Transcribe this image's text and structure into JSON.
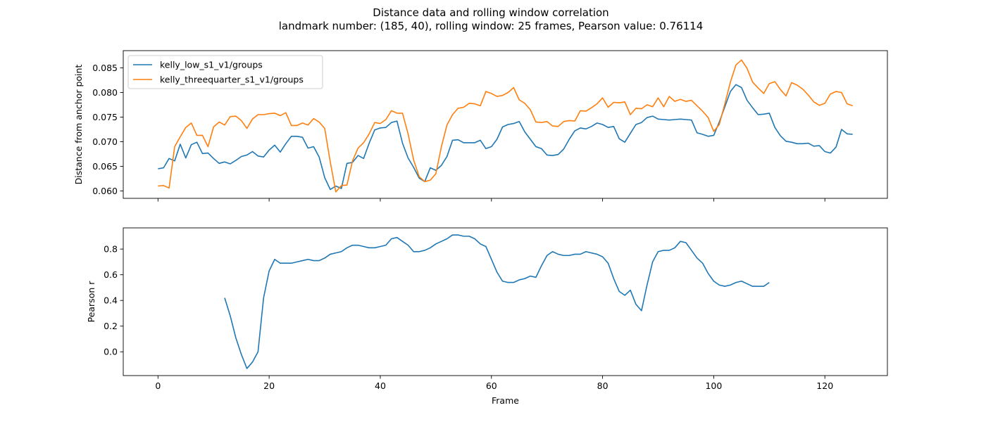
{
  "title_lines": [
    "Distance data and rolling window correlation",
    "landmark number: (185, 40), rolling window: 25 frames, Pearson value: 0.76114"
  ],
  "colors": {
    "series_1": "#1f77b4",
    "series_2": "#ff7f0e",
    "frame": "#000000"
  },
  "chart_data": [
    {
      "type": "line",
      "ylabel": "Distance from anchor point",
      "xlim": [
        -6.25,
        131.25
      ],
      "ylim": [
        0.0585,
        0.0885
      ],
      "xticks": [
        0,
        20,
        40,
        60,
        80,
        100,
        120
      ],
      "show_x_tick_labels": false,
      "yticks": [
        0.06,
        0.065,
        0.07,
        0.075,
        0.08,
        0.085
      ],
      "ytick_labels": [
        "0.060",
        "0.065",
        "0.070",
        "0.075",
        "0.080",
        "0.085"
      ],
      "grid": false,
      "legend_position": "upper-left",
      "series": [
        {
          "name": "kelly_low_s1_v1/groups",
          "color": "#1f77b4",
          "x_start": 0,
          "values": [
            0.0645,
            0.0647,
            0.0666,
            0.0661,
            0.0695,
            0.0667,
            0.0694,
            0.0699,
            0.0676,
            0.0677,
            0.0666,
            0.0656,
            0.0659,
            0.0655,
            0.0662,
            0.067,
            0.0673,
            0.068,
            0.0671,
            0.0669,
            0.0683,
            0.0693,
            0.0679,
            0.0696,
            0.0711,
            0.0711,
            0.0709,
            0.0687,
            0.069,
            0.0669,
            0.0627,
            0.0603,
            0.061,
            0.0605,
            0.0656,
            0.0658,
            0.0672,
            0.0666,
            0.0697,
            0.0724,
            0.0728,
            0.0729,
            0.0739,
            0.0742,
            0.0697,
            0.0667,
            0.0648,
            0.0626,
            0.0619,
            0.0647,
            0.0642,
            0.0652,
            0.067,
            0.0703,
            0.0704,
            0.0698,
            0.0698,
            0.0698,
            0.0703,
            0.0686,
            0.069,
            0.0705,
            0.073,
            0.0735,
            0.0737,
            0.0741,
            0.072,
            0.0705,
            0.069,
            0.0686,
            0.0673,
            0.0672,
            0.0674,
            0.0685,
            0.0705,
            0.0722,
            0.0728,
            0.0726,
            0.0731,
            0.0738,
            0.0735,
            0.0729,
            0.0731,
            0.0706,
            0.0699,
            0.0717,
            0.0735,
            0.0739,
            0.0749,
            0.0752,
            0.0746,
            0.0745,
            0.0744,
            0.0745,
            0.0746,
            0.0745,
            0.0744,
            0.0718,
            0.0715,
            0.0711,
            0.0713,
            0.074,
            0.0771,
            0.0802,
            0.0816,
            0.081,
            0.0784,
            0.0769,
            0.0755,
            0.0756,
            0.0758,
            0.0729,
            0.0712,
            0.0701,
            0.0699,
            0.0696,
            0.0696,
            0.0697,
            0.0691,
            0.0692,
            0.068,
            0.0677,
            0.0689,
            0.0725,
            0.0716,
            0.0715
          ]
        },
        {
          "name": "kelly_threequarter_s1_v1/groups",
          "color": "#ff7f0e",
          "x_start": 0,
          "values": [
            0.061,
            0.0611,
            0.0606,
            0.069,
            0.071,
            0.0729,
            0.0738,
            0.0713,
            0.0713,
            0.069,
            0.073,
            0.074,
            0.0734,
            0.0751,
            0.0752,
            0.0743,
            0.0727,
            0.0746,
            0.0755,
            0.0755,
            0.0757,
            0.0758,
            0.0753,
            0.0759,
            0.0733,
            0.0733,
            0.0738,
            0.0734,
            0.0747,
            0.074,
            0.0727,
            0.0659,
            0.0598,
            0.0611,
            0.0612,
            0.0661,
            0.0687,
            0.0698,
            0.0716,
            0.0739,
            0.0737,
            0.0745,
            0.0763,
            0.0758,
            0.0758,
            0.0716,
            0.0663,
            0.0629,
            0.0619,
            0.0622,
            0.0635,
            0.069,
            0.0734,
            0.0755,
            0.0768,
            0.077,
            0.0778,
            0.0777,
            0.0773,
            0.0802,
            0.0798,
            0.0792,
            0.0794,
            0.08,
            0.081,
            0.0785,
            0.0778,
            0.0765,
            0.074,
            0.0739,
            0.0741,
            0.0732,
            0.0731,
            0.0741,
            0.0743,
            0.0742,
            0.0763,
            0.0762,
            0.0769,
            0.0777,
            0.0789,
            0.077,
            0.078,
            0.0779,
            0.0781,
            0.0755,
            0.0768,
            0.0767,
            0.0775,
            0.0771,
            0.0789,
            0.0771,
            0.0792,
            0.0782,
            0.0786,
            0.0782,
            0.0784,
            0.0773,
            0.0762,
            0.0749,
            0.0721,
            0.0735,
            0.0777,
            0.0821,
            0.0856,
            0.0866,
            0.0849,
            0.0821,
            0.0809,
            0.0798,
            0.0818,
            0.0822,
            0.0806,
            0.0793,
            0.082,
            0.0815,
            0.0807,
            0.0795,
            0.0781,
            0.0774,
            0.0778,
            0.0797,
            0.0802,
            0.08,
            0.0777,
            0.0773
          ]
        }
      ]
    },
    {
      "type": "line",
      "xlabel": "Frame",
      "ylabel": "Pearson r",
      "xlim": [
        -6.25,
        131.25
      ],
      "ylim": [
        -0.185,
        0.965
      ],
      "xticks": [
        0,
        20,
        40,
        60,
        80,
        100,
        120
      ],
      "xtick_labels": [
        "0",
        "20",
        "40",
        "60",
        "80",
        "100",
        "120"
      ],
      "yticks": [
        0.0,
        0.2,
        0.4,
        0.6,
        0.8
      ],
      "ytick_labels": [
        "0.0",
        "0.2",
        "0.4",
        "0.6",
        "0.8"
      ],
      "grid": false,
      "series": [
        {
          "color": "#1f77b4",
          "x_start": 12,
          "values": [
            0.42,
            0.28,
            0.11,
            -0.02,
            -0.13,
            -0.08,
            0.0,
            0.42,
            0.63,
            0.72,
            0.69,
            0.69,
            0.69,
            0.7,
            0.71,
            0.72,
            0.71,
            0.71,
            0.73,
            0.76,
            0.77,
            0.78,
            0.81,
            0.83,
            0.83,
            0.82,
            0.81,
            0.81,
            0.82,
            0.83,
            0.88,
            0.89,
            0.86,
            0.83,
            0.78,
            0.78,
            0.79,
            0.81,
            0.84,
            0.86,
            0.88,
            0.91,
            0.91,
            0.9,
            0.9,
            0.88,
            0.84,
            0.82,
            0.72,
            0.62,
            0.55,
            0.54,
            0.54,
            0.56,
            0.57,
            0.59,
            0.58,
            0.67,
            0.75,
            0.78,
            0.76,
            0.75,
            0.75,
            0.76,
            0.76,
            0.78,
            0.77,
            0.76,
            0.74,
            0.69,
            0.57,
            0.47,
            0.44,
            0.48,
            0.37,
            0.32,
            0.52,
            0.7,
            0.78,
            0.79,
            0.79,
            0.81,
            0.86,
            0.85,
            0.79,
            0.73,
            0.69,
            0.61,
            0.55,
            0.52,
            0.51,
            0.52,
            0.54,
            0.55,
            0.53,
            0.51,
            0.51,
            0.51,
            0.54
          ]
        }
      ]
    }
  ]
}
